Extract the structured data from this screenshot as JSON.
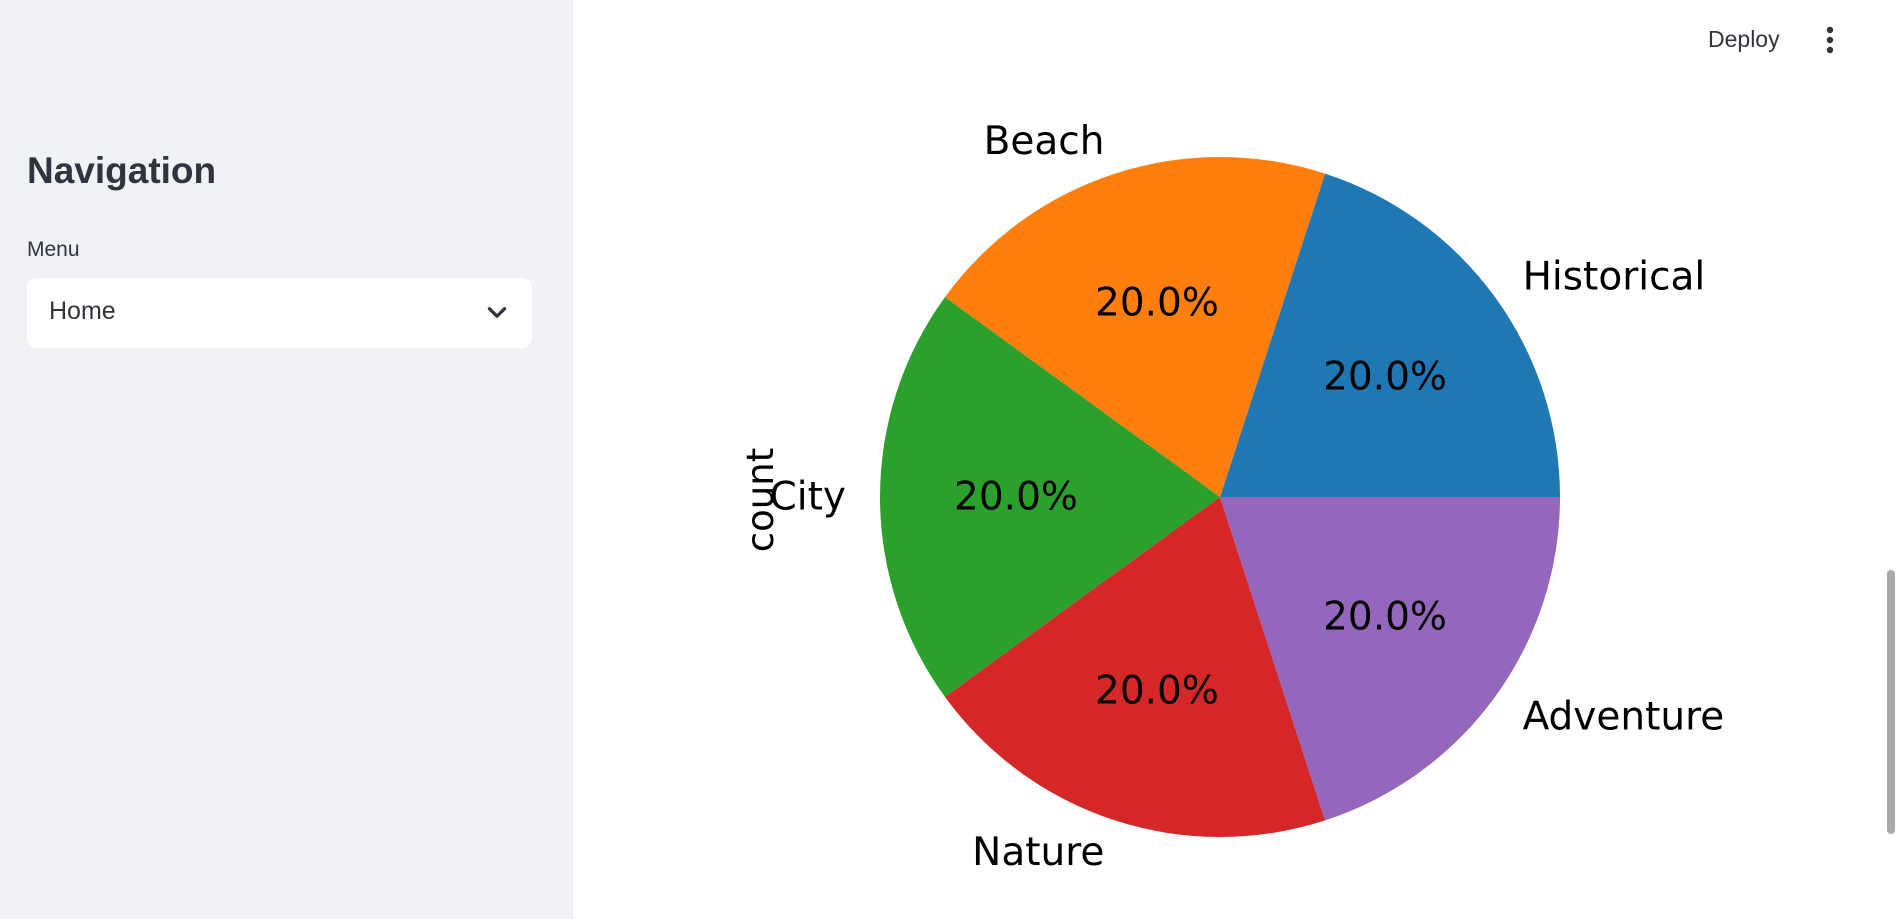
{
  "sidebar": {
    "title": "Navigation",
    "menu_label": "Menu",
    "menu_selected": "Home"
  },
  "header": {
    "deploy_label": "Deploy",
    "menu_icon": "kebab-menu-icon"
  },
  "icons": {
    "select_chevron": "chevron-down-icon"
  },
  "colors": {
    "sidebar_bg": "#f0f2f6",
    "text": "#31333f",
    "historical": "#1f77b4",
    "beach": "#ff7f0e",
    "city": "#2ca02c",
    "nature": "#d62728",
    "adventure": "#9467bd"
  },
  "chart_data": {
    "type": "pie",
    "ylabel": "count",
    "categories": [
      "Historical",
      "Beach",
      "City",
      "Nature",
      "Adventure"
    ],
    "values": [
      20,
      20,
      20,
      20,
      20
    ],
    "percent_labels": [
      "20.0%",
      "20.0%",
      "20.0%",
      "20.0%",
      "20.0%"
    ],
    "colors": [
      "#1f77b4",
      "#ff7f0e",
      "#2ca02c",
      "#d62728",
      "#9467bd"
    ],
    "start_angle": 0,
    "direction": "counterclockwise",
    "legend": "none"
  }
}
